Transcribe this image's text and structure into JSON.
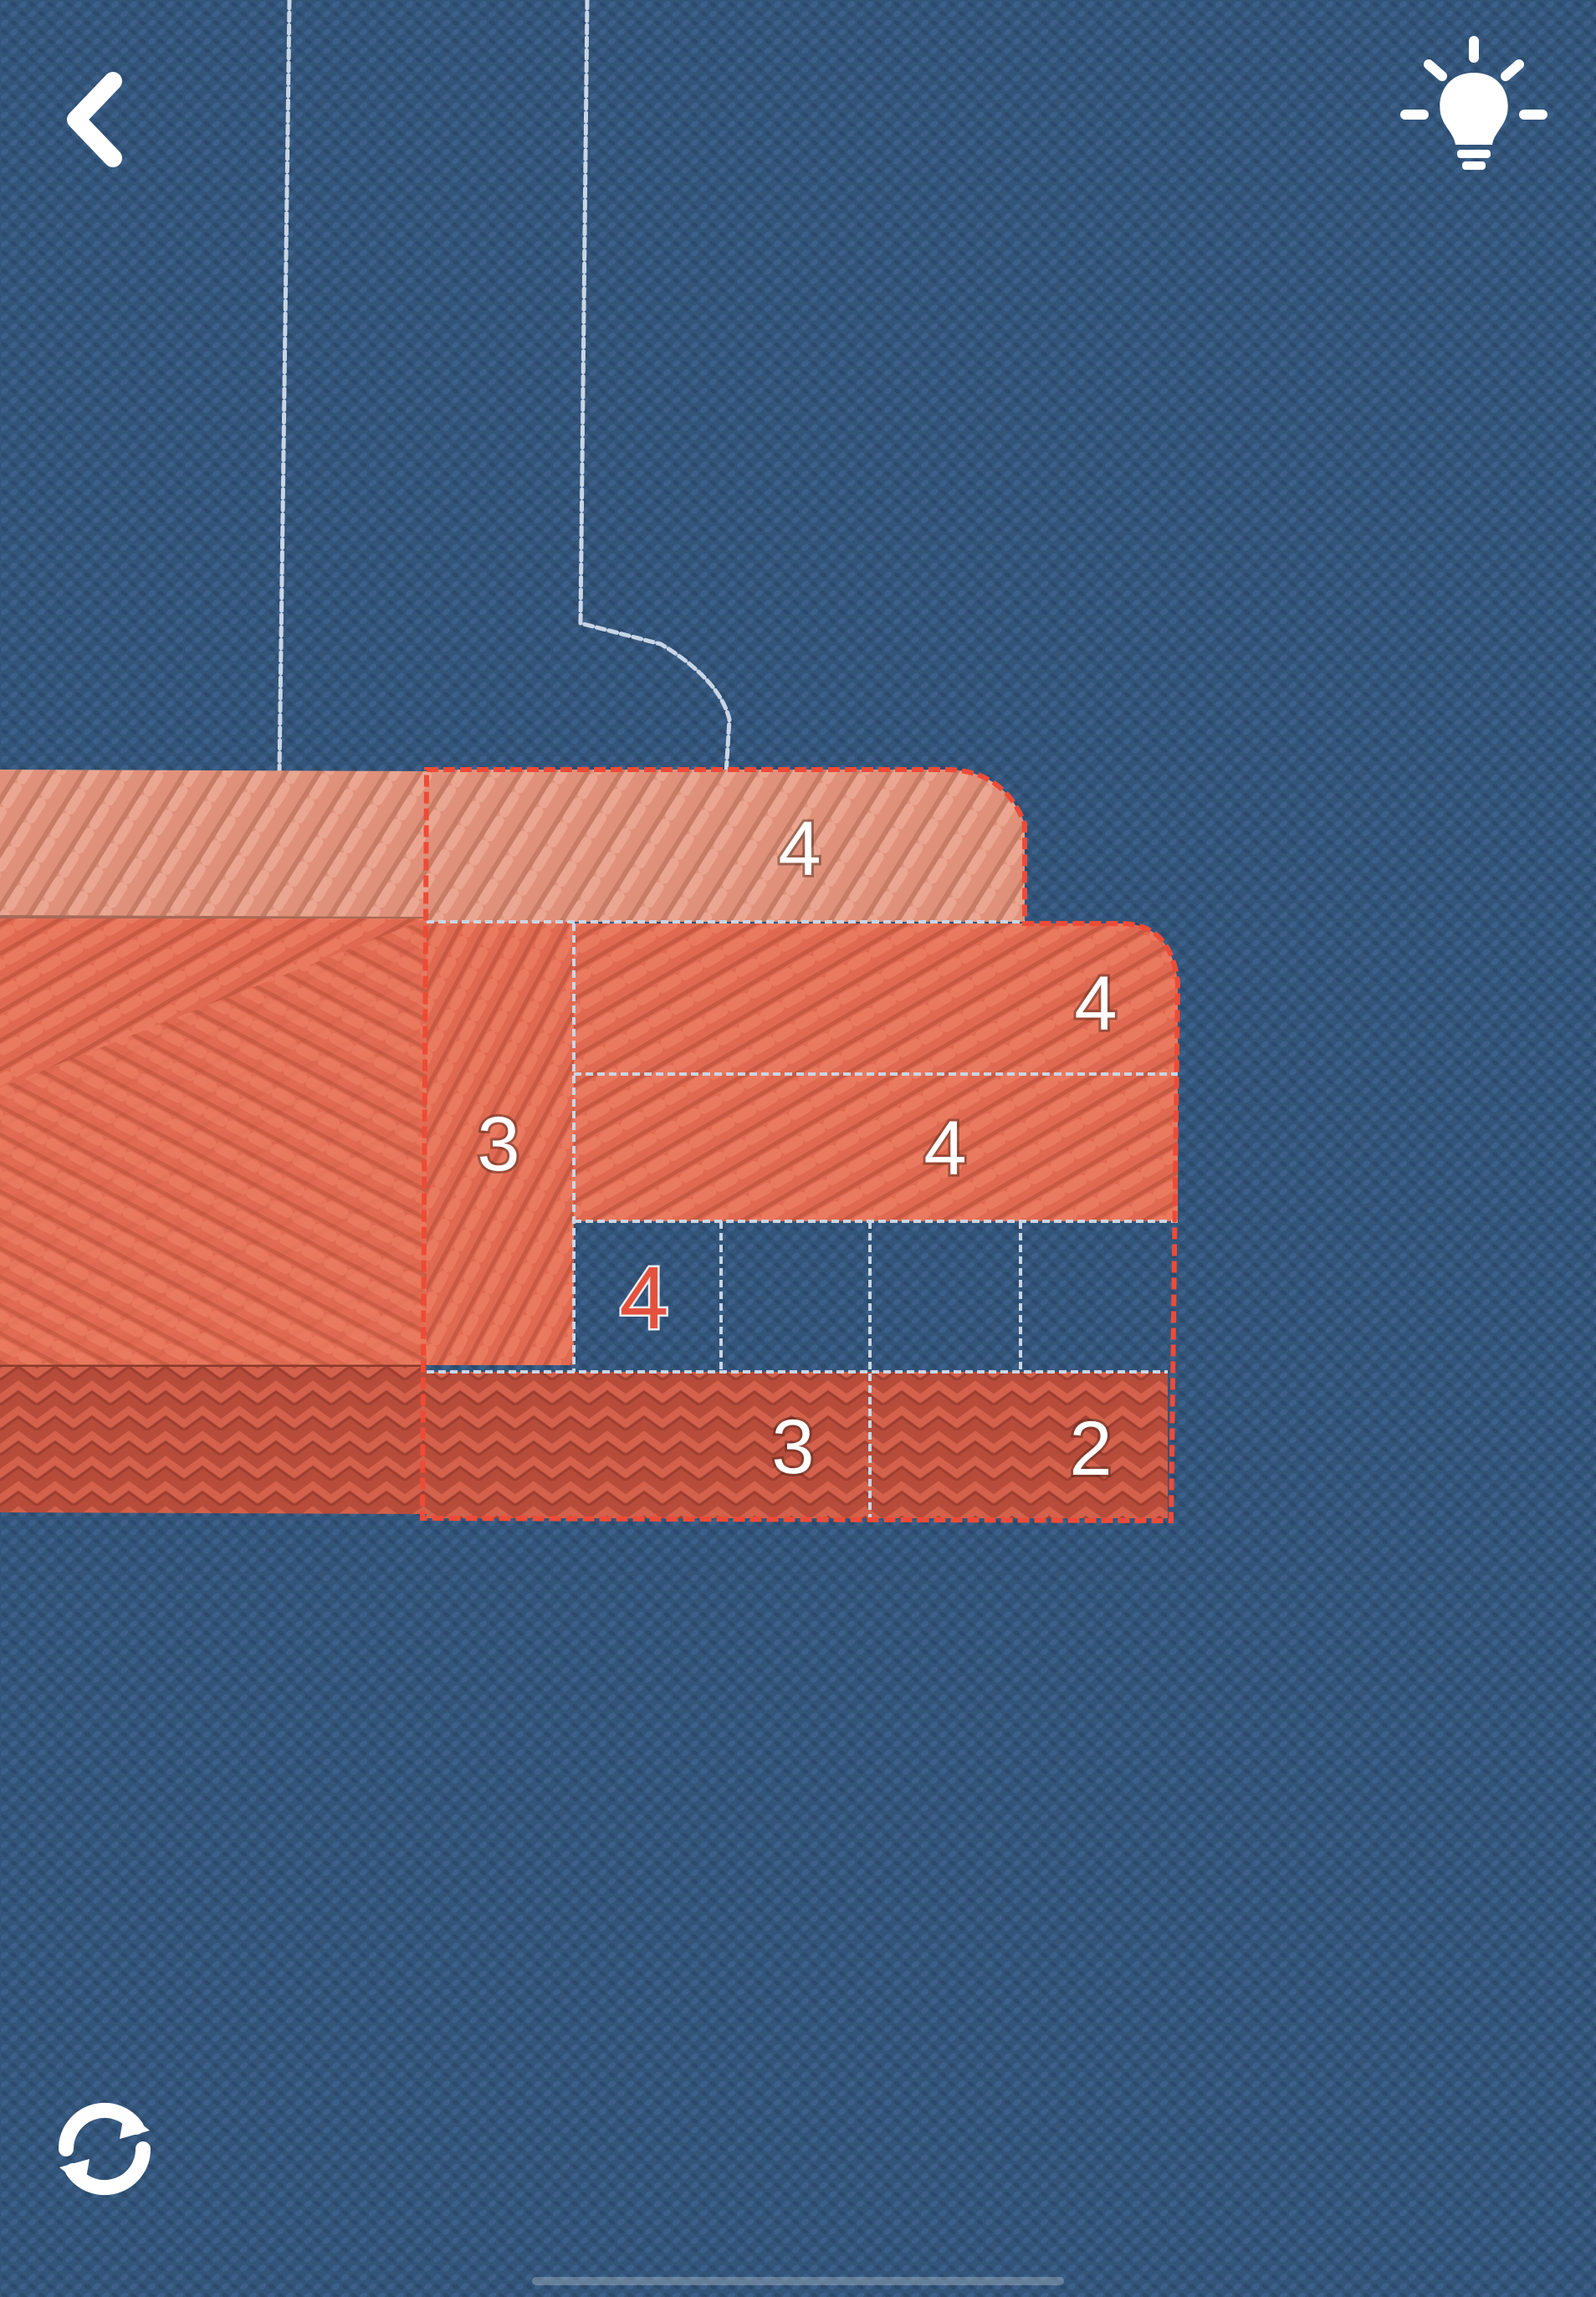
{
  "game": {
    "colors": {
      "background": "#33557a",
      "peach": "#e3927a",
      "orange": "#e2664c",
      "brick": "#bf4f3d",
      "stitch_guide": "#c9d6e6",
      "outline": "#ee4b37",
      "active_number": "#e4523e",
      "number_text": "#ffffff"
    }
  },
  "hud": {
    "back_icon": "chevron-left-icon",
    "hint_icon": "lightbulb-icon",
    "restart_icon": "refresh-icon"
  },
  "board": {
    "numbers": {
      "top_peach": "4",
      "vertical_strip": "3",
      "right_upper": "4",
      "right_middle": "4",
      "empty_active": "4",
      "bottom_left": "3",
      "bottom_right": "2"
    }
  }
}
